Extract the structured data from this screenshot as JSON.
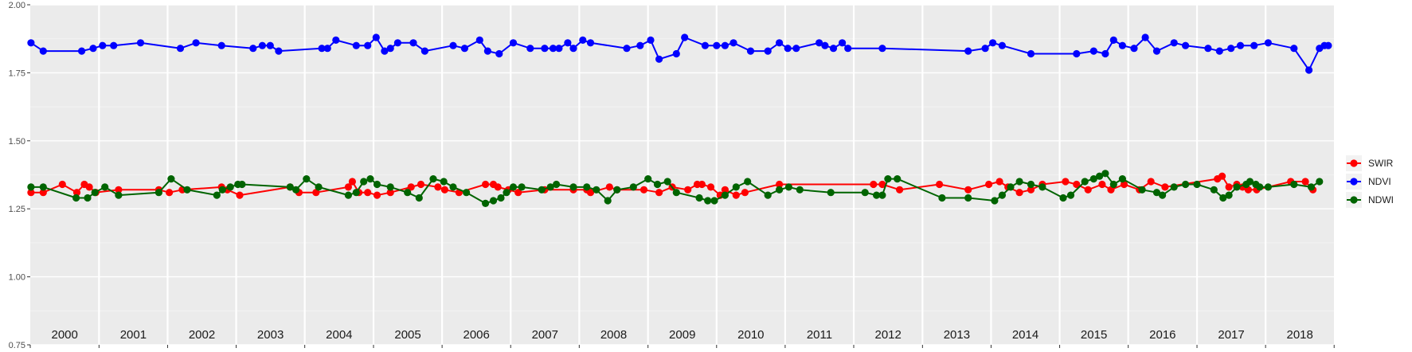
{
  "chart_data": {
    "type": "line",
    "title": "",
    "xlabel": "",
    "ylabel": "",
    "x_range": [
      "2000-01-01",
      "2018-12-31"
    ],
    "ylim": [
      0.75,
      2.0
    ],
    "y_ticks": [
      "0.75",
      "1.00",
      "1.25",
      "1.50",
      "1.75",
      "2.00"
    ],
    "y_tick_values": [
      0.75,
      1.0,
      1.25,
      1.5,
      1.75,
      2.0
    ],
    "year_labels": [
      "2000",
      "2001",
      "2002",
      "2003",
      "2004",
      "2005",
      "2006",
      "2007",
      "2008",
      "2009",
      "2010",
      "2011",
      "2012",
      "2013",
      "2014",
      "2015",
      "2016",
      "2017",
      "2018"
    ],
    "grid": true,
    "legend_position": "right",
    "series": [
      {
        "name": "SWIR",
        "color": "#ff0000",
        "points": [
          [
            "2000-01-05",
            1.31
          ],
          [
            "2000-03-10",
            1.31
          ],
          [
            "2000-06-20",
            1.34
          ],
          [
            "2000-09-05",
            1.31
          ],
          [
            "2000-10-15",
            1.34
          ],
          [
            "2000-11-10",
            1.33
          ],
          [
            "2000-12-15",
            1.31
          ],
          [
            "2001-04-15",
            1.32
          ],
          [
            "2001-11-15",
            1.32
          ],
          [
            "2002-01-10",
            1.31
          ],
          [
            "2002-03-20",
            1.32
          ],
          [
            "2002-10-15",
            1.33
          ],
          [
            "2002-11-15",
            1.32
          ],
          [
            "2003-01-20",
            1.3
          ],
          [
            "2003-10-15",
            1.33
          ],
          [
            "2003-12-01",
            1.31
          ],
          [
            "2004-03-01",
            1.31
          ],
          [
            "2004-08-20",
            1.33
          ],
          [
            "2004-09-10",
            1.35
          ],
          [
            "2004-10-15",
            1.31
          ],
          [
            "2004-12-01",
            1.31
          ],
          [
            "2005-01-20",
            1.3
          ],
          [
            "2005-04-01",
            1.31
          ],
          [
            "2005-07-20",
            1.33
          ],
          [
            "2005-09-10",
            1.34
          ],
          [
            "2005-12-10",
            1.33
          ],
          [
            "2006-01-15",
            1.32
          ],
          [
            "2006-04-01",
            1.31
          ],
          [
            "2006-08-20",
            1.34
          ],
          [
            "2006-10-01",
            1.34
          ],
          [
            "2006-10-25",
            1.33
          ],
          [
            "2006-12-20",
            1.32
          ],
          [
            "2007-02-10",
            1.31
          ],
          [
            "2007-07-01",
            1.32
          ],
          [
            "2007-12-01",
            1.32
          ],
          [
            "2008-02-10",
            1.32
          ],
          [
            "2008-03-01",
            1.31
          ],
          [
            "2008-06-10",
            1.33
          ],
          [
            "2008-07-20",
            1.32
          ],
          [
            "2008-12-10",
            1.32
          ],
          [
            "2009-03-01",
            1.31
          ],
          [
            "2009-05-10",
            1.33
          ],
          [
            "2009-08-01",
            1.32
          ],
          [
            "2009-09-20",
            1.34
          ],
          [
            "2009-10-15",
            1.34
          ],
          [
            "2009-12-01",
            1.33
          ],
          [
            "2010-01-20",
            1.3
          ],
          [
            "2010-02-15",
            1.32
          ],
          [
            "2010-04-15",
            1.3
          ],
          [
            "2010-06-01",
            1.31
          ],
          [
            "2010-12-01",
            1.34
          ],
          [
            "2012-04-15",
            1.34
          ],
          [
            "2012-06-01",
            1.34
          ],
          [
            "2012-09-01",
            1.32
          ],
          [
            "2013-04-01",
            1.34
          ],
          [
            "2013-09-01",
            1.32
          ],
          [
            "2013-12-20",
            1.34
          ],
          [
            "2014-02-15",
            1.35
          ],
          [
            "2014-04-01",
            1.33
          ],
          [
            "2014-06-01",
            1.31
          ],
          [
            "2014-08-01",
            1.32
          ],
          [
            "2014-10-01",
            1.34
          ],
          [
            "2015-02-01",
            1.35
          ],
          [
            "2015-04-01",
            1.34
          ],
          [
            "2015-06-01",
            1.32
          ],
          [
            "2015-08-15",
            1.34
          ],
          [
            "2015-10-01",
            1.32
          ],
          [
            "2015-12-10",
            1.34
          ],
          [
            "2016-03-01",
            1.32
          ],
          [
            "2016-05-01",
            1.35
          ],
          [
            "2016-07-15",
            1.33
          ],
          [
            "2017-04-20",
            1.36
          ],
          [
            "2017-05-15",
            1.37
          ],
          [
            "2017-06-20",
            1.33
          ],
          [
            "2017-08-01",
            1.34
          ],
          [
            "2017-09-01",
            1.33
          ],
          [
            "2017-10-01",
            1.32
          ],
          [
            "2017-11-15",
            1.32
          ],
          [
            "2018-05-15",
            1.35
          ],
          [
            "2018-08-01",
            1.35
          ],
          [
            "2018-09-10",
            1.32
          ]
        ]
      },
      {
        "name": "NDVI",
        "color": "#0000ff",
        "points": [
          [
            "2000-01-05",
            1.86
          ],
          [
            "2000-03-10",
            1.83
          ],
          [
            "2000-10-01",
            1.83
          ],
          [
            "2000-12-01",
            1.84
          ],
          [
            "2001-01-20",
            1.85
          ],
          [
            "2001-03-20",
            1.85
          ],
          [
            "2001-08-10",
            1.86
          ],
          [
            "2002-03-10",
            1.84
          ],
          [
            "2002-06-01",
            1.86
          ],
          [
            "2002-10-15",
            1.85
          ],
          [
            "2003-04-01",
            1.84
          ],
          [
            "2003-05-20",
            1.85
          ],
          [
            "2003-07-01",
            1.85
          ],
          [
            "2003-08-15",
            1.83
          ],
          [
            "2004-04-01",
            1.84
          ],
          [
            "2004-05-01",
            1.84
          ],
          [
            "2004-06-15",
            1.87
          ],
          [
            "2004-10-01",
            1.85
          ],
          [
            "2004-12-01",
            1.85
          ],
          [
            "2005-01-15",
            1.88
          ],
          [
            "2005-03-01",
            1.83
          ],
          [
            "2005-04-01",
            1.84
          ],
          [
            "2005-05-10",
            1.86
          ],
          [
            "2005-08-01",
            1.86
          ],
          [
            "2005-10-01",
            1.83
          ],
          [
            "2006-03-01",
            1.85
          ],
          [
            "2006-05-01",
            1.84
          ],
          [
            "2006-07-20",
            1.87
          ],
          [
            "2006-09-01",
            1.83
          ],
          [
            "2006-11-01",
            1.82
          ],
          [
            "2007-01-15",
            1.86
          ],
          [
            "2007-04-15",
            1.84
          ],
          [
            "2007-07-01",
            1.84
          ],
          [
            "2007-08-15",
            1.84
          ],
          [
            "2007-09-15",
            1.84
          ],
          [
            "2007-11-01",
            1.86
          ],
          [
            "2007-12-01",
            1.84
          ],
          [
            "2008-01-20",
            1.87
          ],
          [
            "2008-03-01",
            1.86
          ],
          [
            "2008-09-10",
            1.84
          ],
          [
            "2008-11-20",
            1.85
          ],
          [
            "2009-01-15",
            1.87
          ],
          [
            "2009-03-01",
            1.8
          ],
          [
            "2009-06-01",
            1.82
          ],
          [
            "2009-07-15",
            1.88
          ],
          [
            "2009-11-01",
            1.85
          ],
          [
            "2010-01-01",
            1.85
          ],
          [
            "2010-02-15",
            1.85
          ],
          [
            "2010-04-01",
            1.86
          ],
          [
            "2010-07-01",
            1.83
          ],
          [
            "2010-10-01",
            1.83
          ],
          [
            "2010-12-01",
            1.86
          ],
          [
            "2011-01-15",
            1.84
          ],
          [
            "2011-03-01",
            1.84
          ],
          [
            "2011-07-01",
            1.86
          ],
          [
            "2011-08-01",
            1.85
          ],
          [
            "2011-09-15",
            1.84
          ],
          [
            "2011-11-01",
            1.86
          ],
          [
            "2011-12-01",
            1.84
          ],
          [
            "2012-06-01",
            1.84
          ],
          [
            "2013-09-01",
            1.83
          ],
          [
            "2013-12-01",
            1.84
          ],
          [
            "2014-01-10",
            1.86
          ],
          [
            "2014-03-01",
            1.85
          ],
          [
            "2014-08-01",
            1.82
          ],
          [
            "2015-04-01",
            1.82
          ],
          [
            "2015-07-01",
            1.83
          ],
          [
            "2015-09-01",
            1.82
          ],
          [
            "2015-10-15",
            1.87
          ],
          [
            "2015-12-01",
            1.85
          ],
          [
            "2016-02-01",
            1.84
          ],
          [
            "2016-04-01",
            1.88
          ],
          [
            "2016-06-01",
            1.83
          ],
          [
            "2016-09-01",
            1.86
          ],
          [
            "2016-11-01",
            1.85
          ],
          [
            "2017-03-01",
            1.84
          ],
          [
            "2017-05-01",
            1.83
          ],
          [
            "2017-07-01",
            1.84
          ],
          [
            "2017-08-20",
            1.85
          ],
          [
            "2017-11-01",
            1.85
          ],
          [
            "2018-01-15",
            1.86
          ],
          [
            "2018-06-01",
            1.84
          ],
          [
            "2018-08-20",
            1.76
          ],
          [
            "2018-10-15",
            1.84
          ],
          [
            "2018-11-10",
            1.85
          ],
          [
            "2018-12-01",
            1.85
          ]
        ]
      },
      {
        "name": "NDWI",
        "color": "#006400",
        "points": [
          [
            "2000-01-05",
            1.33
          ],
          [
            "2000-03-10",
            1.33
          ],
          [
            "2000-09-01",
            1.29
          ],
          [
            "2000-11-01",
            1.29
          ],
          [
            "2000-12-10",
            1.31
          ],
          [
            "2001-02-01",
            1.33
          ],
          [
            "2001-04-15",
            1.3
          ],
          [
            "2001-11-15",
            1.31
          ],
          [
            "2002-01-20",
            1.36
          ],
          [
            "2002-04-15",
            1.32
          ],
          [
            "2002-09-20",
            1.3
          ],
          [
            "2002-10-20",
            1.32
          ],
          [
            "2002-12-01",
            1.33
          ],
          [
            "2003-01-10",
            1.34
          ],
          [
            "2003-02-01",
            1.34
          ],
          [
            "2003-10-15",
            1.33
          ],
          [
            "2003-11-15",
            1.32
          ],
          [
            "2004-01-10",
            1.36
          ],
          [
            "2004-03-15",
            1.33
          ],
          [
            "2004-08-20",
            1.3
          ],
          [
            "2004-10-01",
            1.31
          ],
          [
            "2004-11-10",
            1.35
          ],
          [
            "2004-12-15",
            1.36
          ],
          [
            "2005-01-20",
            1.34
          ],
          [
            "2005-04-01",
            1.33
          ],
          [
            "2005-07-01",
            1.31
          ],
          [
            "2005-09-01",
            1.29
          ],
          [
            "2005-11-15",
            1.36
          ],
          [
            "2006-01-10",
            1.35
          ],
          [
            "2006-03-01",
            1.33
          ],
          [
            "2006-05-10",
            1.31
          ],
          [
            "2006-08-20",
            1.27
          ],
          [
            "2006-10-01",
            1.28
          ],
          [
            "2006-11-10",
            1.29
          ],
          [
            "2006-12-10",
            1.31
          ],
          [
            "2007-01-15",
            1.33
          ],
          [
            "2007-03-01",
            1.33
          ],
          [
            "2007-06-15",
            1.32
          ],
          [
            "2007-08-01",
            1.33
          ],
          [
            "2007-09-01",
            1.34
          ],
          [
            "2007-12-01",
            1.33
          ],
          [
            "2008-02-10",
            1.33
          ],
          [
            "2008-04-01",
            1.32
          ],
          [
            "2008-06-01",
            1.28
          ],
          [
            "2008-07-20",
            1.32
          ],
          [
            "2008-10-15",
            1.33
          ],
          [
            "2009-01-01",
            1.36
          ],
          [
            "2009-02-20",
            1.34
          ],
          [
            "2009-04-15",
            1.35
          ],
          [
            "2009-06-01",
            1.31
          ],
          [
            "2009-10-01",
            1.29
          ],
          [
            "2009-11-15",
            1.28
          ],
          [
            "2009-12-20",
            1.28
          ],
          [
            "2010-02-15",
            1.3
          ],
          [
            "2010-04-15",
            1.33
          ],
          [
            "2010-06-15",
            1.35
          ],
          [
            "2010-10-01",
            1.3
          ],
          [
            "2010-12-01",
            1.32
          ],
          [
            "2011-01-20",
            1.33
          ],
          [
            "2011-03-20",
            1.32
          ],
          [
            "2011-09-01",
            1.31
          ],
          [
            "2012-03-01",
            1.31
          ],
          [
            "2012-05-01",
            1.3
          ],
          [
            "2012-06-01",
            1.3
          ],
          [
            "2012-07-01",
            1.36
          ],
          [
            "2012-08-20",
            1.36
          ],
          [
            "2013-04-15",
            1.29
          ],
          [
            "2013-09-01",
            1.29
          ],
          [
            "2014-01-20",
            1.28
          ],
          [
            "2014-03-01",
            1.3
          ],
          [
            "2014-04-15",
            1.33
          ],
          [
            "2014-06-01",
            1.35
          ],
          [
            "2014-08-01",
            1.34
          ],
          [
            "2014-10-01",
            1.33
          ],
          [
            "2015-01-20",
            1.29
          ],
          [
            "2015-03-01",
            1.3
          ],
          [
            "2015-05-15",
            1.35
          ],
          [
            "2015-07-01",
            1.36
          ],
          [
            "2015-08-01",
            1.37
          ],
          [
            "2015-09-01",
            1.38
          ],
          [
            "2015-10-15",
            1.34
          ],
          [
            "2015-12-01",
            1.36
          ],
          [
            "2016-03-15",
            1.32
          ],
          [
            "2016-06-01",
            1.31
          ],
          [
            "2016-07-01",
            1.3
          ],
          [
            "2016-09-01",
            1.33
          ],
          [
            "2016-11-01",
            1.34
          ],
          [
            "2017-01-01",
            1.34
          ],
          [
            "2017-04-01",
            1.32
          ],
          [
            "2017-05-20",
            1.29
          ],
          [
            "2017-06-20",
            1.3
          ],
          [
            "2017-08-01",
            1.33
          ],
          [
            "2017-09-20",
            1.34
          ],
          [
            "2017-10-10",
            1.35
          ],
          [
            "2017-11-10",
            1.34
          ],
          [
            "2017-12-01",
            1.33
          ],
          [
            "2018-01-15",
            1.33
          ],
          [
            "2018-06-01",
            1.34
          ],
          [
            "2018-09-01",
            1.33
          ],
          [
            "2018-10-15",
            1.35
          ]
        ]
      }
    ]
  }
}
